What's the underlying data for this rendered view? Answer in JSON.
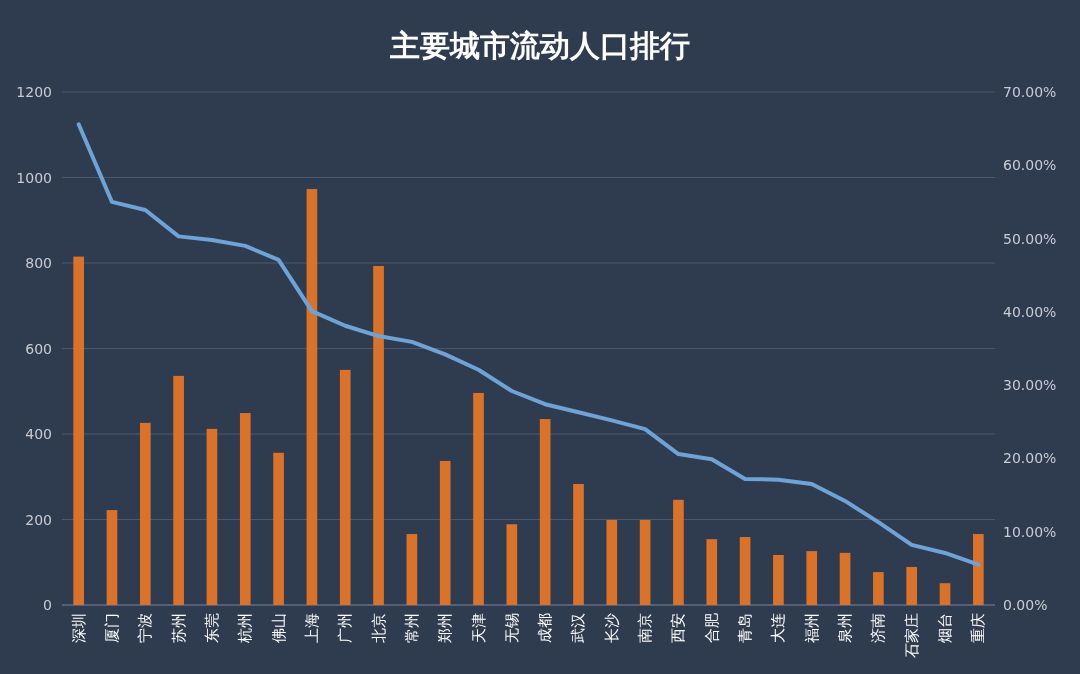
{
  "chart_data": {
    "type": "bar",
    "title": "主要城市流动人口排行",
    "categories": [
      "深圳",
      "厦门",
      "宁波",
      "苏州",
      "东莞",
      "杭州",
      "佛山",
      "上海",
      "广州",
      "北京",
      "常州",
      "郑州",
      "天津",
      "无锡",
      "成都",
      "武汉",
      "长沙",
      "南京",
      "西安",
      "合肥",
      "青岛",
      "大连",
      "福州",
      "泉州",
      "济南",
      "石家庄",
      "烟台",
      "重庆"
    ],
    "series": [
      {
        "color": "#d9722a",
        "values": [
          815,
          222,
          426,
          536,
          412,
          449,
          356,
          973,
          550,
          793,
          166,
          337,
          496,
          189,
          435,
          283,
          199,
          199,
          246,
          154,
          159,
          117,
          126,
          122,
          77,
          89,
          51,
          166
        ]
      },
      {
        "type": "line",
        "axis": "y2",
        "color": "#6fa3d8",
        "values": [
          65.6,
          55.0,
          53.9,
          50.3,
          49.8,
          49.0,
          47.1,
          40.1,
          38.1,
          36.7,
          35.9,
          34.2,
          32.1,
          29.2,
          27.4,
          26.3,
          25.2,
          24.0,
          20.6,
          19.9,
          17.2,
          17.1,
          16.5,
          14.2,
          11.3,
          8.2,
          7.1,
          5.5
        ]
      }
    ],
    "ylim": [
      0,
      1200
    ],
    "yticks": [
      0,
      200,
      400,
      600,
      800,
      1000,
      1200
    ],
    "y2lim": [
      0,
      70
    ],
    "y2ticks": [
      {
        "value": 0,
        "label": "0.00%"
      },
      {
        "value": 10,
        "label": "10.00%"
      },
      {
        "value": 20,
        "label": "20.00%"
      },
      {
        "value": 30,
        "label": "30.00%"
      },
      {
        "value": 40,
        "label": "40.00%"
      },
      {
        "value": 50,
        "label": "50.00%"
      },
      {
        "value": 60,
        "label": "60.00%"
      },
      {
        "value": 70,
        "label": "70.00%"
      }
    ],
    "grid": "y"
  }
}
